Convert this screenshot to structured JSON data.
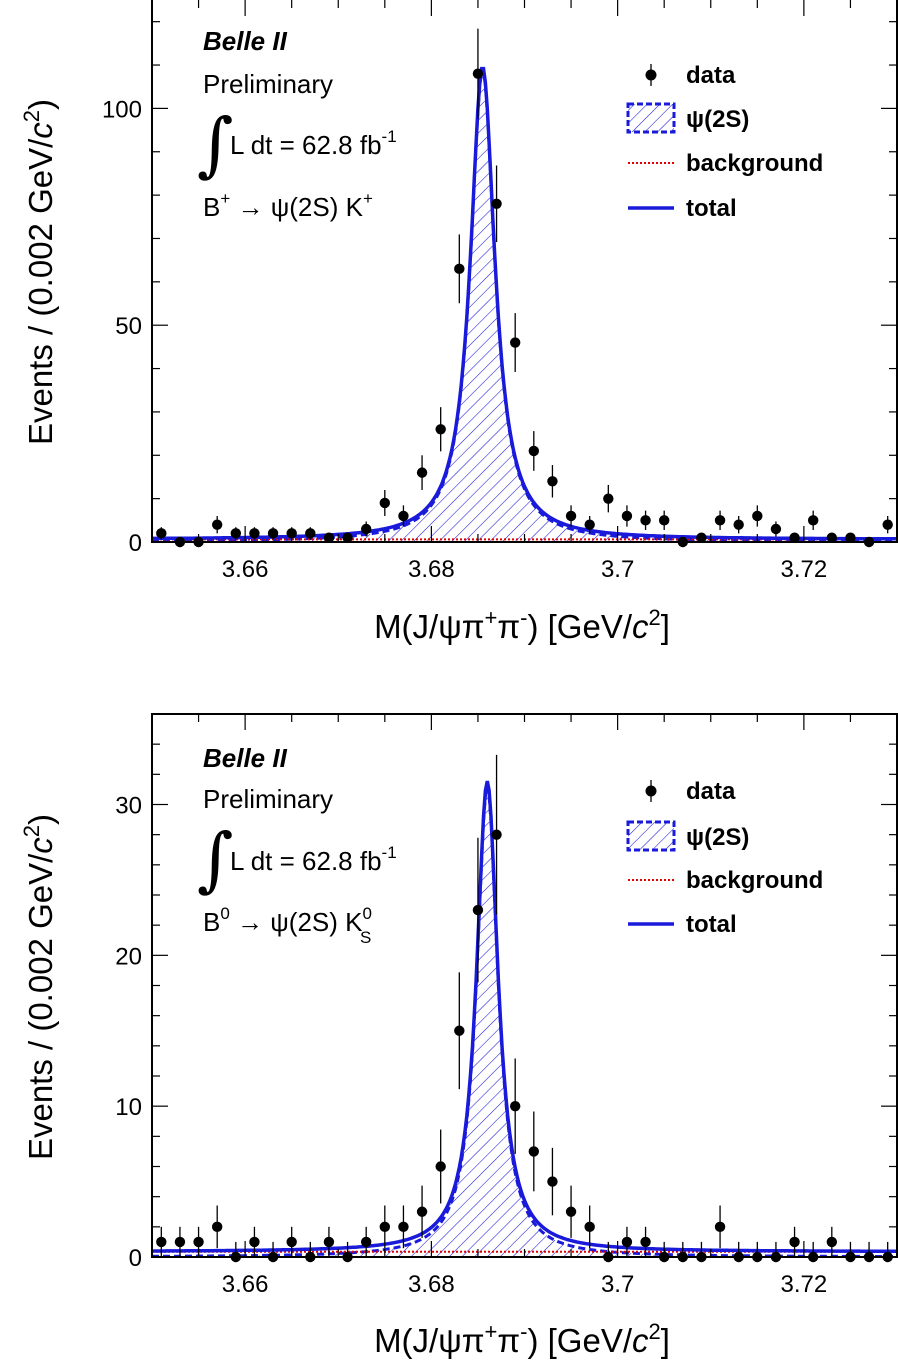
{
  "chart_data": [
    {
      "type": "scatter",
      "experiment_label": "Belle II",
      "status_label": "Preliminary",
      "luminosity": {
        "prefix": "L dt = 62.8 fb",
        "sup": "-1"
      },
      "decay": {
        "main": "B",
        "sup": "+",
        "arrow": " → ψ(2S) K",
        "sup2": "+",
        "sub2": ""
      },
      "xlabel": {
        "pre": "M(J/ψπ",
        "sup1": "+",
        "mid": "π",
        "sup2": "-",
        "post": ") [GeV/",
        "italic": "c",
        "sup3": "2",
        "end": "]"
      },
      "ylabel": {
        "pre": "Events / (0.002 GeV/",
        "italic": "c",
        "sup": "2",
        "end": ")"
      },
      "xlim": [
        3.65,
        3.73
      ],
      "ylim": [
        0,
        125
      ],
      "xticks": [
        "3.66",
        "3.68",
        "3.7",
        "3.72"
      ],
      "xtick_values": [
        3.66,
        3.68,
        3.7,
        3.72
      ],
      "yticks": [
        "0",
        "50",
        "100"
      ],
      "ytick_values": [
        0,
        50,
        100
      ],
      "legend": [
        "data",
        "ψ(2S)",
        "background",
        "total"
      ],
      "colors": {
        "data": "#000000",
        "signal": "#1a1adb",
        "background": "#e00000",
        "total": "#1a1adb"
      },
      "signal": {
        "peak": 3.6855,
        "amp": 109,
        "width": 0.0016
      },
      "background_level": 0.6,
      "series": [
        {
          "name": "data",
          "points": [
            {
              "x": 3.651,
              "y": 2
            },
            {
              "x": 3.653,
              "y": 0
            },
            {
              "x": 3.655,
              "y": 0
            },
            {
              "x": 3.657,
              "y": 4
            },
            {
              "x": 3.659,
              "y": 2
            },
            {
              "x": 3.661,
              "y": 2
            },
            {
              "x": 3.663,
              "y": 2
            },
            {
              "x": 3.665,
              "y": 2
            },
            {
              "x": 3.667,
              "y": 2
            },
            {
              "x": 3.669,
              "y": 1
            },
            {
              "x": 3.671,
              "y": 1
            },
            {
              "x": 3.673,
              "y": 3
            },
            {
              "x": 3.675,
              "y": 9
            },
            {
              "x": 3.677,
              "y": 6
            },
            {
              "x": 3.679,
              "y": 16
            },
            {
              "x": 3.681,
              "y": 26
            },
            {
              "x": 3.683,
              "y": 63
            },
            {
              "x": 3.685,
              "y": 108
            },
            {
              "x": 3.687,
              "y": 78
            },
            {
              "x": 3.689,
              "y": 46
            },
            {
              "x": 3.691,
              "y": 21
            },
            {
              "x": 3.693,
              "y": 14
            },
            {
              "x": 3.695,
              "y": 6
            },
            {
              "x": 3.697,
              "y": 4
            },
            {
              "x": 3.699,
              "y": 10
            },
            {
              "x": 3.701,
              "y": 6
            },
            {
              "x": 3.703,
              "y": 5
            },
            {
              "x": 3.705,
              "y": 5
            },
            {
              "x": 3.707,
              "y": 0
            },
            {
              "x": 3.709,
              "y": 1
            },
            {
              "x": 3.711,
              "y": 5
            },
            {
              "x": 3.713,
              "y": 4
            },
            {
              "x": 3.715,
              "y": 6
            },
            {
              "x": 3.717,
              "y": 3
            },
            {
              "x": 3.719,
              "y": 1
            },
            {
              "x": 3.721,
              "y": 5
            },
            {
              "x": 3.723,
              "y": 1
            },
            {
              "x": 3.725,
              "y": 1
            },
            {
              "x": 3.727,
              "y": 0
            },
            {
              "x": 3.729,
              "y": 4
            }
          ]
        }
      ]
    },
    {
      "type": "scatter",
      "experiment_label": "Belle II",
      "status_label": "Preliminary",
      "luminosity": {
        "prefix": "L dt = 62.8 fb",
        "sup": "-1"
      },
      "decay": {
        "main": "B",
        "sup": "0",
        "arrow": " → ψ(2S) K",
        "sup2": "0",
        "sub2": "S"
      },
      "xlabel": {
        "pre": "M(J/ψπ",
        "sup1": "+",
        "mid": "π",
        "sup2": "-",
        "post": ") [GeV/",
        "italic": "c",
        "sup3": "2",
        "end": "]"
      },
      "ylabel": {
        "pre": "Events / (0.002 GeV/",
        "italic": "c",
        "sup": "2",
        "end": ")"
      },
      "xlim": [
        3.65,
        3.73
      ],
      "ylim": [
        0,
        36
      ],
      "xticks": [
        "3.66",
        "3.68",
        "3.7",
        "3.72"
      ],
      "xtick_values": [
        3.66,
        3.68,
        3.7,
        3.72
      ],
      "yticks": [
        "0",
        "10",
        "20",
        "30"
      ],
      "ytick_values": [
        0,
        10,
        20,
        30
      ],
      "legend": [
        "data",
        "ψ(2S)",
        "background",
        "total"
      ],
      "colors": {
        "data": "#000000",
        "signal": "#1a1adb",
        "background": "#e00000",
        "total": "#1a1adb"
      },
      "signal": {
        "peak": 3.686,
        "amp": 31.2,
        "width": 0.0014
      },
      "background_level": 0.35,
      "series": [
        {
          "name": "data",
          "points": [
            {
              "x": 3.651,
              "y": 1
            },
            {
              "x": 3.653,
              "y": 1
            },
            {
              "x": 3.655,
              "y": 1
            },
            {
              "x": 3.657,
              "y": 2
            },
            {
              "x": 3.659,
              "y": 0
            },
            {
              "x": 3.661,
              "y": 1
            },
            {
              "x": 3.663,
              "y": 0
            },
            {
              "x": 3.665,
              "y": 1
            },
            {
              "x": 3.667,
              "y": 0
            },
            {
              "x": 3.669,
              "y": 1
            },
            {
              "x": 3.671,
              "y": 0
            },
            {
              "x": 3.673,
              "y": 1
            },
            {
              "x": 3.675,
              "y": 2
            },
            {
              "x": 3.677,
              "y": 2
            },
            {
              "x": 3.679,
              "y": 3
            },
            {
              "x": 3.681,
              "y": 6
            },
            {
              "x": 3.683,
              "y": 15
            },
            {
              "x": 3.685,
              "y": 23
            },
            {
              "x": 3.687,
              "y": 28
            },
            {
              "x": 3.689,
              "y": 10
            },
            {
              "x": 3.691,
              "y": 7
            },
            {
              "x": 3.693,
              "y": 5
            },
            {
              "x": 3.695,
              "y": 3
            },
            {
              "x": 3.697,
              "y": 2
            },
            {
              "x": 3.699,
              "y": 0
            },
            {
              "x": 3.701,
              "y": 1
            },
            {
              "x": 3.703,
              "y": 1
            },
            {
              "x": 3.705,
              "y": 0
            },
            {
              "x": 3.707,
              "y": 0
            },
            {
              "x": 3.709,
              "y": 0
            },
            {
              "x": 3.711,
              "y": 2
            },
            {
              "x": 3.713,
              "y": 0
            },
            {
              "x": 3.715,
              "y": 0
            },
            {
              "x": 3.717,
              "y": 0
            },
            {
              "x": 3.719,
              "y": 1
            },
            {
              "x": 3.721,
              "y": 0
            },
            {
              "x": 3.723,
              "y": 1
            },
            {
              "x": 3.725,
              "y": 0
            },
            {
              "x": 3.727,
              "y": 0
            },
            {
              "x": 3.729,
              "y": 0
            }
          ]
        }
      ]
    }
  ]
}
